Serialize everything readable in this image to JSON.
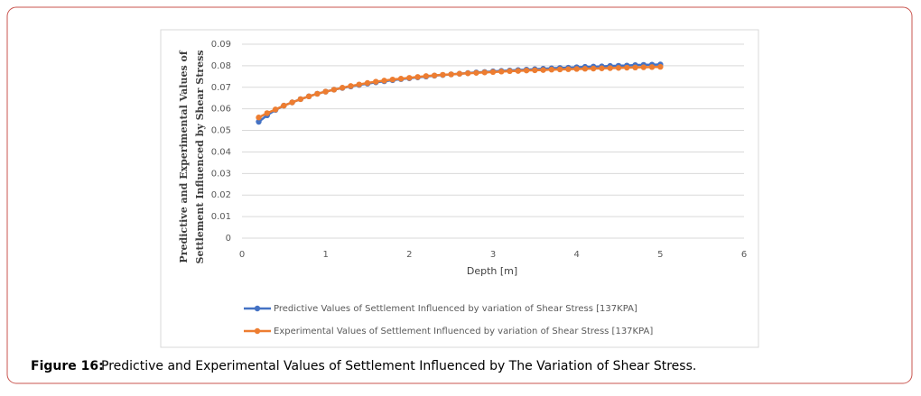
{
  "chart_data": {
    "type": "line",
    "y_label_lines": [
      "Predictive and Experimental Values of",
      "Settlement Influenced by Shear Stress"
    ],
    "x_label": "Depth [m]",
    "caption_label": "Figure 16:",
    "caption": "Predictive and Experimental Values of Settlement Influenced by The Variation of Shear Stress.",
    "x": [
      0.2,
      0.3,
      0.4,
      0.5,
      0.6,
      0.7,
      0.8,
      0.9,
      1.0,
      1.1,
      1.2,
      1.3,
      1.4,
      1.5,
      1.6,
      1.7,
      1.8,
      1.9,
      2.0,
      2.1,
      2.2,
      2.3,
      2.4,
      2.5,
      2.6,
      2.7,
      2.8,
      2.9,
      3.0,
      3.1,
      3.2,
      3.3,
      3.4,
      3.5,
      3.6,
      3.7,
      3.8,
      3.9,
      4.0,
      4.1,
      4.2,
      4.3,
      4.4,
      4.5,
      4.6,
      4.7,
      4.8,
      4.9,
      5.0
    ],
    "series": [
      {
        "name": "Predictive Values of Settlement Influenced by variation of Shear Stress [137KPA]",
        "color": "#4472c4",
        "values": [
          0.054,
          0.057,
          0.0595,
          0.0615,
          0.063,
          0.0645,
          0.0658,
          0.067,
          0.068,
          0.0689,
          0.0697,
          0.0704,
          0.0711,
          0.0717,
          0.0723,
          0.0728,
          0.0733,
          0.0738,
          0.0742,
          0.0746,
          0.075,
          0.0754,
          0.0757,
          0.076,
          0.0763,
          0.0766,
          0.0769,
          0.0771,
          0.0774,
          0.0776,
          0.0778,
          0.078,
          0.0782,
          0.0784,
          0.0786,
          0.0788,
          0.079,
          0.0791,
          0.0793,
          0.0795,
          0.0796,
          0.0797,
          0.0799,
          0.08,
          0.0801,
          0.0803,
          0.0804,
          0.0805,
          0.0806
        ]
      },
      {
        "name": "Experimental Values of Settlement Influenced by variation of Shear Stress [137KPA]",
        "color": "#ed7d31",
        "values": [
          0.056,
          0.058,
          0.0597,
          0.0615,
          0.063,
          0.0645,
          0.0658,
          0.067,
          0.068,
          0.0689,
          0.0698,
          0.0706,
          0.0713,
          0.072,
          0.0726,
          0.0731,
          0.0736,
          0.074,
          0.0744,
          0.0748,
          0.0752,
          0.0755,
          0.0758,
          0.076,
          0.0763,
          0.0765,
          0.0767,
          0.0769,
          0.0771,
          0.0773,
          0.0775,
          0.0776,
          0.0778,
          0.0779,
          0.078,
          0.0782,
          0.0783,
          0.0784,
          0.0785,
          0.0786,
          0.0787,
          0.0788,
          0.0789,
          0.079,
          0.0791,
          0.0792,
          0.0793,
          0.0794,
          0.0795
        ]
      }
    ],
    "xlim": [
      0,
      6
    ],
    "xticks": [
      0,
      1,
      2,
      3,
      4,
      5,
      6
    ],
    "ylim": [
      0,
      0.09
    ],
    "yticks": [
      0,
      0.01,
      0.02,
      0.03,
      0.04,
      0.05,
      0.06,
      0.07,
      0.08,
      0.09
    ],
    "grid": true
  }
}
